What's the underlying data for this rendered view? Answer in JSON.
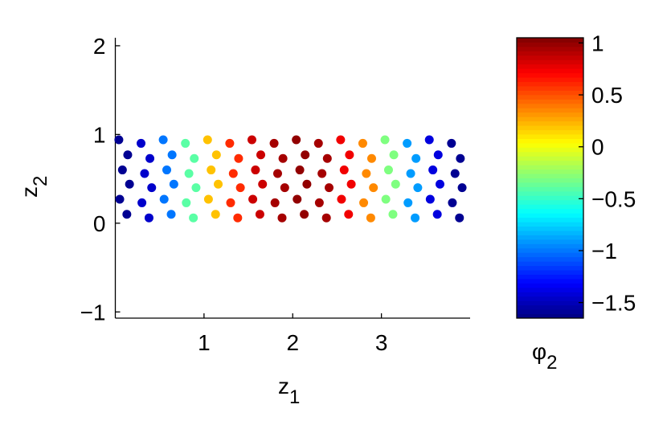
{
  "chart_data": {
    "type": "scatter",
    "x_label": {
      "text": "z",
      "subscript": "1"
    },
    "y_label": {
      "text": "z",
      "subscript": "2"
    },
    "colorbar_label": {
      "text": "φ",
      "subscript": "2"
    },
    "colormap": "jet",
    "xlim": [
      0,
      4
    ],
    "ylim": [
      -1.07,
      2.09
    ],
    "xticks": [
      1,
      2,
      3
    ],
    "yticks": [
      {
        "value": -1,
        "label": "−1"
      },
      0,
      1,
      2
    ],
    "clim": [
      -1.65,
      1.05
    ],
    "cticks": [
      {
        "value": -1.5,
        "label": "−1.5"
      },
      {
        "value": -1,
        "label": "−1"
      },
      {
        "value": -0.5,
        "label": "−0.5"
      },
      0,
      0.5,
      1
    ],
    "x": [
      0.13,
      0.05,
      0.16,
      0.08,
      0.14,
      0.04,
      0.38,
      0.3,
      0.41,
      0.33,
      0.39,
      0.29,
      0.63,
      0.55,
      0.66,
      0.58,
      0.64,
      0.54,
      0.88,
      0.8,
      0.91,
      0.83,
      0.89,
      0.79,
      1.13,
      1.05,
      1.16,
      1.08,
      1.14,
      1.04,
      1.38,
      1.3,
      1.41,
      1.33,
      1.39,
      1.29,
      1.63,
      1.55,
      1.66,
      1.58,
      1.64,
      1.54,
      1.88,
      1.8,
      1.91,
      1.83,
      1.89,
      1.79,
      2.13,
      2.05,
      2.16,
      2.08,
      2.14,
      2.04,
      2.38,
      2.3,
      2.41,
      2.33,
      2.39,
      2.29,
      2.63,
      2.55,
      2.66,
      2.58,
      2.64,
      2.54,
      2.88,
      2.8,
      2.91,
      2.83,
      2.89,
      2.79,
      3.13,
      3.05,
      3.16,
      3.08,
      3.14,
      3.04,
      3.38,
      3.3,
      3.41,
      3.33,
      3.39,
      3.29,
      3.63,
      3.55,
      3.66,
      3.58,
      3.64,
      3.54,
      3.88,
      3.8,
      3.91,
      3.83,
      3.89,
      3.79
    ],
    "values": [
      0.1,
      0.27,
      0.44,
      0.6,
      0.77,
      0.94,
      0.06,
      0.23,
      0.4,
      0.56,
      0.73,
      0.9,
      0.1,
      0.27,
      0.44,
      0.6,
      0.77,
      0.94,
      0.06,
      0.23,
      0.4,
      0.56,
      0.73,
      0.9,
      0.1,
      0.27,
      0.44,
      0.6,
      0.77,
      0.94,
      0.06,
      0.23,
      0.4,
      0.56,
      0.73,
      0.9,
      0.1,
      0.27,
      0.44,
      0.6,
      0.77,
      0.94,
      0.06,
      0.23,
      0.4,
      0.56,
      0.73,
      0.9,
      0.1,
      0.27,
      0.44,
      0.6,
      0.77,
      0.94,
      0.06,
      0.23,
      0.4,
      0.56,
      0.73,
      0.9,
      0.1,
      0.27,
      0.44,
      0.6,
      0.77,
      0.94,
      0.06,
      0.23,
      0.4,
      0.56,
      0.73,
      0.9,
      0.1,
      0.27,
      0.44,
      0.6,
      0.77,
      0.94,
      0.06,
      0.23,
      0.4,
      0.56,
      0.73,
      0.9,
      0.1,
      0.27,
      0.44,
      0.6,
      0.77,
      0.94,
      0.06,
      0.23,
      0.4,
      0.56,
      0.73,
      0.9
    ],
    "color_values": [
      -1.6,
      -1.6,
      -1.6,
      -1.6,
      -1.6,
      -1.6,
      -1.45,
      -1.45,
      -1.45,
      -1.45,
      -1.45,
      -1.45,
      -1.0,
      -1.0,
      -1.0,
      -1.0,
      -1.0,
      -1.0,
      -0.4,
      -0.4,
      -0.4,
      -0.4,
      -0.4,
      -0.4,
      0.2,
      0.2,
      0.2,
      0.2,
      0.2,
      0.2,
      0.6,
      0.6,
      0.6,
      0.6,
      0.6,
      0.6,
      0.85,
      0.85,
      0.85,
      0.85,
      0.85,
      0.85,
      0.95,
      0.95,
      0.95,
      0.95,
      0.95,
      0.95,
      1.0,
      1.0,
      1.0,
      1.0,
      1.0,
      1.0,
      0.95,
      0.95,
      0.95,
      0.95,
      0.95,
      0.95,
      0.75,
      0.75,
      0.75,
      0.75,
      0.75,
      0.75,
      0.35,
      0.35,
      0.35,
      0.35,
      0.35,
      0.35,
      -0.3,
      -0.3,
      -0.3,
      -0.3,
      -0.3,
      -0.3,
      -0.9,
      -0.9,
      -0.9,
      -0.9,
      -0.9,
      -0.9,
      -1.4,
      -1.4,
      -1.4,
      -1.4,
      -1.4,
      -1.4,
      -1.6,
      -1.6,
      -1.6,
      -1.6,
      -1.6,
      -1.6
    ]
  }
}
